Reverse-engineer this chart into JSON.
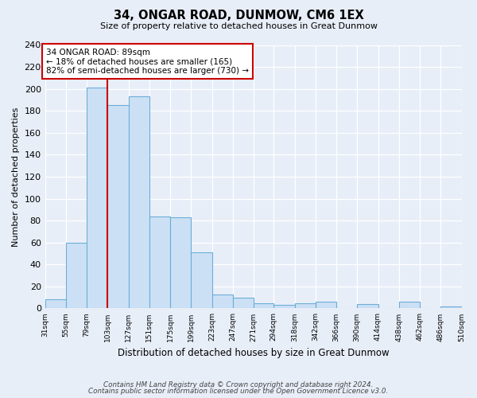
{
  "title": "34, ONGAR ROAD, DUNMOW, CM6 1EX",
  "subtitle": "Size of property relative to detached houses in Great Dunmow",
  "xlabel": "Distribution of detached houses by size in Great Dunmow",
  "ylabel": "Number of detached properties",
  "bar_values": [
    8,
    60,
    201,
    185,
    193,
    84,
    83,
    51,
    13,
    10,
    5,
    3,
    5,
    6,
    0,
    4,
    0,
    6,
    0,
    2
  ],
  "bin_edges": [
    31,
    55,
    79,
    103,
    127,
    151,
    175,
    199,
    223,
    247,
    271,
    294,
    318,
    342,
    366,
    390,
    414,
    438,
    462,
    486,
    510
  ],
  "bin_labels": [
    "31sqm",
    "55sqm",
    "79sqm",
    "103sqm",
    "127sqm",
    "151sqm",
    "175sqm",
    "199sqm",
    "223sqm",
    "247sqm",
    "271sqm",
    "294sqm",
    "318sqm",
    "342sqm",
    "366sqm",
    "390sqm",
    "414sqm",
    "438sqm",
    "462sqm",
    "486sqm",
    "510sqm"
  ],
  "bar_color": "#cce0f5",
  "bar_edge_color": "#6baed6",
  "vline_x_bin": 3,
  "vline_color": "#cc0000",
  "annotation_text": "34 ONGAR ROAD: 89sqm\n← 18% of detached houses are smaller (165)\n82% of semi-detached houses are larger (730) →",
  "annotation_box_color": "white",
  "annotation_box_edge": "#cc0000",
  "ylim": [
    0,
    240
  ],
  "yticks": [
    0,
    20,
    40,
    60,
    80,
    100,
    120,
    140,
    160,
    180,
    200,
    220,
    240
  ],
  "footer_line1": "Contains HM Land Registry data © Crown copyright and database right 2024.",
  "footer_line2": "Contains public sector information licensed under the Open Government Licence v3.0.",
  "background_color": "#e8eef8",
  "plot_bg_color": "#e8eef8"
}
